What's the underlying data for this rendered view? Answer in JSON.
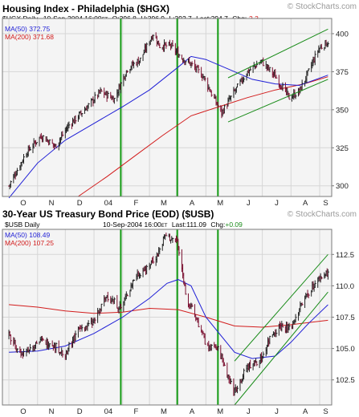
{
  "colors": {
    "background": "#ffffff",
    "plot_bg": "#f4f4f4",
    "grid": "#d6d6d6",
    "frame": "#7a7a7a",
    "price_bar": "#222222",
    "price_bar_dark": "#7a1030",
    "ma50": "#1f1fd6",
    "ma200": "#d21c1c",
    "trend_channel": "#1a8c1a",
    "vertical_markers": "#129a12",
    "watermark": "#9a9a9a",
    "change_negative": "#d21c1c",
    "change_positive": "#1a8c1a"
  },
  "watermark": "© StockCharts.com",
  "panels": [
    {
      "title": "Housing Index - Philadelphia ($HGX)",
      "symbol": "$HGX Daily",
      "date": "10-Sep-2004 16:00",
      "tz": "ET",
      "open_label": "O:",
      "open": "396.8",
      "high_label": "H:",
      "high": "396.9",
      "low_label": "L:",
      "low": "392.7",
      "last_label": "Last:",
      "last": "394.7",
      "chg_label": "Chg:",
      "chg": "-2.3",
      "ma50_label": "MA(50) 372.75",
      "ma200_label": "MA(200) 371.68"
    },
    {
      "title": "30-Year US Treasury Bond Price (EOD) ($USB)",
      "symbol": "$USB Daily",
      "date": "10-Sep-2004 16:00",
      "tz": "ET",
      "last_label": "Last:",
      "last": "111.09",
      "chg_label": "Chg:",
      "chg": "+0.09",
      "ma50_label": "MA(50) 108.49",
      "ma200_label": "MA(200) 107.25"
    }
  ],
  "chart_data": [
    {
      "type": "bar",
      "subtype": "ohlc",
      "title": "Housing Index - Philadelphia ($HGX)",
      "period": "Daily",
      "x_tick_labels": [
        "O",
        "N",
        "D",
        "04",
        "F",
        "M",
        "A",
        "M",
        "J",
        "J",
        "A",
        "S"
      ],
      "ylim": [
        293,
        410
      ],
      "y_ticks": [
        300,
        325,
        350,
        375,
        400
      ],
      "grid": true,
      "series": [
        {
          "name": "$HGX",
          "x": [
            "2003-10-01",
            "2003-10-20",
            "2003-11-05",
            "2003-11-20",
            "2003-12-05",
            "2003-12-22",
            "2004-01-08",
            "2004-01-23",
            "2004-02-06",
            "2004-02-20",
            "2004-03-05",
            "2004-03-12",
            "2004-03-24",
            "2004-04-05",
            "2004-04-15",
            "2004-04-28",
            "2004-05-10",
            "2004-05-18",
            "2004-06-01",
            "2004-06-15",
            "2004-06-30",
            "2004-07-15",
            "2004-07-30",
            "2004-08-10",
            "2004-08-20",
            "2004-08-31",
            "2004-09-10"
          ],
          "values": [
            300,
            322,
            333,
            326,
            340,
            350,
            362,
            357,
            377,
            383,
            400,
            392,
            392,
            384,
            380,
            372,
            357,
            348,
            362,
            375,
            382,
            372,
            358,
            362,
            375,
            390,
            394.7
          ]
        },
        {
          "name": "MA(50)",
          "x": [
            "2003-10-01",
            "2003-11-01",
            "2003-12-01",
            "2004-01-01",
            "2004-02-01",
            "2004-03-01",
            "2004-04-01",
            "2004-04-15",
            "2004-05-01",
            "2004-06-01",
            "2004-06-20",
            "2004-07-15",
            "2004-08-10",
            "2004-09-10"
          ],
          "values": [
            292,
            315,
            330,
            341,
            352,
            363,
            378,
            385,
            383,
            375,
            370,
            367,
            366,
            372.75
          ]
        },
        {
          "name": "MA(200)",
          "x": [
            "2003-12-15",
            "2004-01-15",
            "2004-02-15",
            "2004-03-15",
            "2004-04-15",
            "2004-05-15",
            "2004-06-15",
            "2004-07-15",
            "2004-08-15",
            "2004-09-10"
          ],
          "values": [
            293,
            306,
            320,
            333,
            346,
            352,
            358,
            363,
            367,
            371.68
          ]
        }
      ],
      "trend_lines": [
        {
          "x": [
            "2004-05-25",
            "2004-09-10"
          ],
          "values": [
            371,
            403
          ]
        },
        {
          "x": [
            "2004-05-25",
            "2004-09-10"
          ],
          "values": [
            342,
            370
          ]
        }
      ],
      "vertical_markers": [
        "2004-01-30",
        "2004-03-31",
        "2004-05-14"
      ]
    },
    {
      "type": "bar",
      "subtype": "ohlc",
      "title": "30-Year US Treasury Bond Price (EOD) ($USB)",
      "period": "Daily",
      "x_tick_labels": [
        "O",
        "N",
        "D",
        "04",
        "F",
        "M",
        "A",
        "M",
        "J",
        "J",
        "A",
        "S"
      ],
      "ylim": [
        100.5,
        114.5
      ],
      "y_ticks": [
        102.5,
        105.0,
        107.5,
        110.0,
        112.5
      ],
      "grid": true,
      "series": [
        {
          "name": "$USB",
          "x": [
            "2003-10-01",
            "2003-10-15",
            "2003-10-31",
            "2003-11-15",
            "2003-11-30",
            "2003-12-15",
            "2003-12-31",
            "2004-01-15",
            "2004-01-30",
            "2004-02-15",
            "2004-02-28",
            "2004-03-10",
            "2004-03-18",
            "2004-03-31",
            "2004-04-10",
            "2004-04-20",
            "2004-04-30",
            "2004-05-15",
            "2004-05-31",
            "2004-06-15",
            "2004-06-30",
            "2004-07-10",
            "2004-07-20",
            "2004-07-31",
            "2004-08-10",
            "2004-08-20",
            "2004-08-31",
            "2004-09-10"
          ],
          "values": [
            106,
            104.5,
            105.5,
            105.5,
            104.5,
            106.5,
            107,
            109.2,
            108.2,
            110.8,
            111.5,
            112.5,
            114,
            113.5,
            109,
            107.5,
            105.5,
            104.8,
            101.5,
            103.5,
            104.2,
            106,
            106.8,
            106.5,
            108.2,
            109.5,
            110.5,
            111.09
          ]
        },
        {
          "name": "MA(50)",
          "x": [
            "2003-10-01",
            "2003-11-01",
            "2003-12-01",
            "2004-01-01",
            "2004-02-01",
            "2004-03-01",
            "2004-03-20",
            "2004-04-01",
            "2004-04-15",
            "2004-05-01",
            "2004-06-01",
            "2004-06-20",
            "2004-07-15",
            "2004-08-01",
            "2004-08-20",
            "2004-09-10"
          ],
          "values": [
            104.7,
            104.8,
            105.2,
            106.2,
            107.5,
            109,
            110.2,
            110.5,
            110,
            107.5,
            104.7,
            104.2,
            104.4,
            105.5,
            107,
            108.49
          ]
        },
        {
          "name": "MA(200)",
          "x": [
            "2003-10-01",
            "2003-11-01",
            "2003-12-01",
            "2004-01-01",
            "2004-02-01",
            "2004-03-01",
            "2004-04-01",
            "2004-05-01",
            "2004-06-01",
            "2004-07-01",
            "2004-08-01",
            "2004-09-10"
          ],
          "values": [
            108.5,
            108.3,
            108,
            107.8,
            107.9,
            108.2,
            108.1,
            107.5,
            106.8,
            106.7,
            106.9,
            107.25
          ]
        }
      ],
      "trend_lines": [
        {
          "x": [
            "2004-06-01",
            "2004-09-10"
          ],
          "values": [
            104,
            112.5
          ]
        },
        {
          "x": [
            "2004-06-01",
            "2004-09-10"
          ],
          "values": [
            100.5,
            109.5
          ]
        }
      ],
      "vertical_markers": [
        "2004-01-30",
        "2004-03-31",
        "2004-05-14"
      ]
    }
  ]
}
